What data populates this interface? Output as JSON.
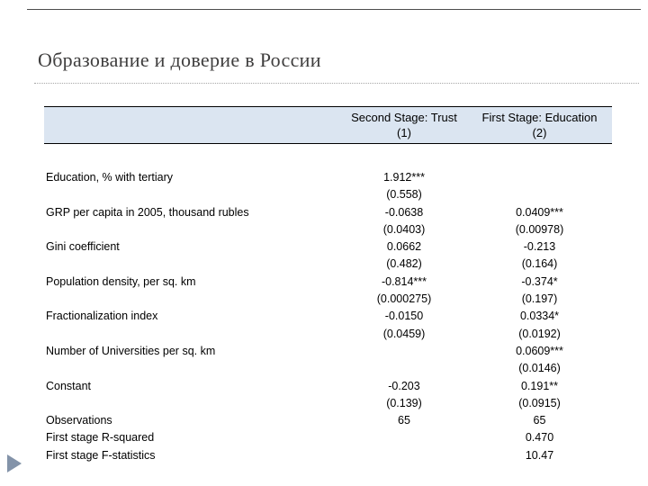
{
  "slide": {
    "title": "Образование и доверие в России",
    "colors": {
      "header_fill": "#dbe5f1",
      "title_text": "#3f3e3e",
      "rule": "#4d4d4d",
      "arrow": "#8393a9"
    }
  },
  "table": {
    "columns": [
      {
        "header": "Second Stage: Trust",
        "number": "(1)"
      },
      {
        "header": "First Stage: Education",
        "number": "(2)"
      }
    ],
    "rows": [
      {
        "label": "Education, % with tertiary",
        "coef1": "1.912***",
        "se1": "(0.558)",
        "coef2": "",
        "se2": ""
      },
      {
        "label": "GRP per capita in 2005, thousand rubles",
        "coef1": "-0.0638",
        "se1": "(0.0403)",
        "coef2": "0.0409***",
        "se2": "(0.00978)"
      },
      {
        "label": "Gini coefficient",
        "coef1": "0.0662",
        "se1": "(0.482)",
        "coef2": "-0.213",
        "se2": "(0.164)"
      },
      {
        "label": "Population density, per sq. km",
        "coef1": "-0.814***",
        "se1": "(0.000275)",
        "coef2": "-0.374*",
        "se2": "(0.197)"
      },
      {
        "label": "Fractionalization index",
        "coef1": "-0.0150",
        "se1": "(0.0459)",
        "coef2": "0.0334*",
        "se2": "(0.0192)"
      },
      {
        "label": "Number of Universities per sq. km",
        "coef1": "",
        "se1": "",
        "coef2": "0.0609***",
        "se2": "(0.0146)"
      },
      {
        "label": "Constant",
        "coef1": "-0.203",
        "se1": "(0.139)",
        "coef2": "0.191**",
        "se2": "(0.0915)"
      }
    ],
    "stats": [
      {
        "label": "Observations",
        "col1": "65",
        "col2": "65"
      },
      {
        "label": "First stage R-squared",
        "col1": "",
        "col2": "0.470"
      },
      {
        "label": "First stage F-statistics",
        "col1": "",
        "col2": "10.47"
      }
    ]
  }
}
